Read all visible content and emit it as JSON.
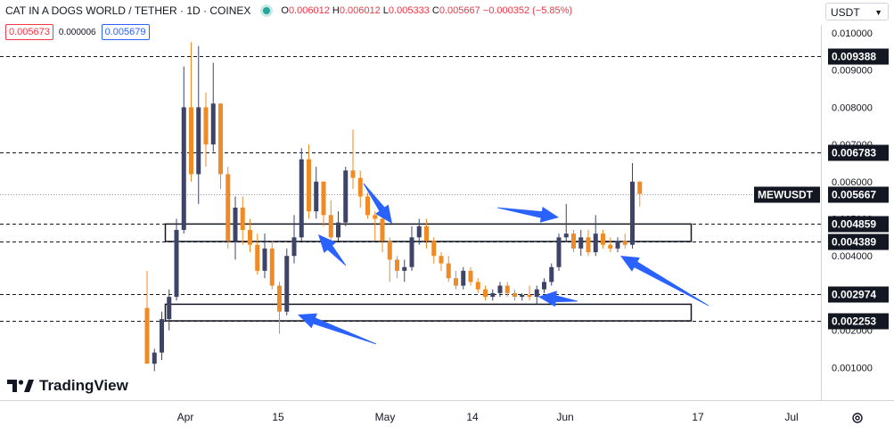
{
  "header": {
    "symbol": "CAT IN A DOGS WORLD / TETHER · 1D · COINEX",
    "o_label": "O",
    "o": "0.006012",
    "h_label": "H",
    "h": "0.006012",
    "l_label": "L",
    "l": "0.005333",
    "c_label": "C",
    "c": "0.005667",
    "change": "−0.000352 (−5.85%)"
  },
  "trade": {
    "sell": "0.005673",
    "spread": "0.000006",
    "buy": "0.005679"
  },
  "currency": "USDT",
  "branding": "TradingView",
  "icons": {
    "gear": "gear-icon",
    "dropdown": "chevron-down-icon"
  },
  "colors": {
    "up": "#3d4468",
    "down": "#f08a24",
    "arrow": "#2962ff",
    "last_price_bg": "#131722"
  },
  "chart_data": {
    "type": "candlestick",
    "symbol": "MEWUSDT",
    "last_price": 0.005667,
    "y_range": [
      0.0004,
      0.0104
    ],
    "y_ticks": [
      "0.001000",
      "0.002000",
      "0.003000",
      "0.004000",
      "0.005000",
      "0.006000",
      "0.007000",
      "0.008000",
      "0.009000",
      "0.010000"
    ],
    "x_tick_labels": [
      "Apr",
      "15",
      "May",
      "14",
      "Jun",
      "17",
      "Jul"
    ],
    "horizontal_levels": [
      {
        "label": "0.009388",
        "value": 0.009388
      },
      {
        "label": "0.006783",
        "value": 0.006783
      },
      {
        "label": "0.004859",
        "value": 0.004859
      },
      {
        "label": "0.004389",
        "value": 0.004389
      },
      {
        "label": "0.002974",
        "value": 0.002974
      },
      {
        "label": "0.002253",
        "value": 0.002253
      }
    ],
    "zones": [
      {
        "low": 0.004389,
        "high": 0.004859
      },
      {
        "low": 0.002253,
        "high": 0.0027
      }
    ],
    "candles": [
      [
        0.0026,
        0.0036,
        0.0011,
        0.0011
      ],
      [
        0.0011,
        0.0015,
        0.0009,
        0.0014
      ],
      [
        0.0014,
        0.0025,
        0.0012,
        0.0023
      ],
      [
        0.0023,
        0.0031,
        0.002,
        0.0029
      ],
      [
        0.0029,
        0.005,
        0.0028,
        0.0047
      ],
      [
        0.0047,
        0.0091,
        0.0046,
        0.008
      ],
      [
        0.008,
        0.00975,
        0.006,
        0.0062
      ],
      [
        0.0062,
        0.00965,
        0.0054,
        0.008
      ],
      [
        0.008,
        0.0084,
        0.0064,
        0.007
      ],
      [
        0.007,
        0.0092,
        0.0068,
        0.0081
      ],
      [
        0.0081,
        0.0081,
        0.0058,
        0.0062
      ],
      [
        0.0062,
        0.0064,
        0.0042,
        0.0044
      ],
      [
        0.0044,
        0.0056,
        0.0039,
        0.0053
      ],
      [
        0.0053,
        0.0056,
        0.0043,
        0.0047
      ],
      [
        0.0047,
        0.005,
        0.0041,
        0.0043
      ],
      [
        0.0043,
        0.0046,
        0.0035,
        0.0036
      ],
      [
        0.0036,
        0.0046,
        0.0034,
        0.0042
      ],
      [
        0.0042,
        0.0044,
        0.0031,
        0.0032
      ],
      [
        0.0032,
        0.0033,
        0.0019,
        0.0025
      ],
      [
        0.0025,
        0.0042,
        0.0024,
        0.004
      ],
      [
        0.004,
        0.0051,
        0.0038,
        0.0045
      ],
      [
        0.0045,
        0.0069,
        0.0044,
        0.0066
      ],
      [
        0.0066,
        0.007,
        0.005,
        0.0052
      ],
      [
        0.0052,
        0.0064,
        0.005,
        0.006
      ],
      [
        0.006,
        0.006,
        0.0048,
        0.0051
      ],
      [
        0.0051,
        0.0055,
        0.0043,
        0.0045
      ],
      [
        0.0045,
        0.0052,
        0.0044,
        0.0049
      ],
      [
        0.0049,
        0.0064,
        0.0048,
        0.0063
      ],
      [
        0.0063,
        0.0074,
        0.0058,
        0.0061
      ],
      [
        0.0061,
        0.0063,
        0.0053,
        0.0056
      ],
      [
        0.0056,
        0.0057,
        0.005,
        0.0051
      ],
      [
        0.0051,
        0.0052,
        0.0044,
        0.005
      ],
      [
        0.005,
        0.0052,
        0.0041,
        0.0044
      ],
      [
        0.0044,
        0.0045,
        0.0033,
        0.0039
      ],
      [
        0.0039,
        0.004,
        0.0034,
        0.0036
      ],
      [
        0.0036,
        0.0039,
        0.0033,
        0.0037
      ],
      [
        0.0037,
        0.0048,
        0.0036,
        0.0045
      ],
      [
        0.0045,
        0.005,
        0.0043,
        0.0048
      ],
      [
        0.0048,
        0.005,
        0.0042,
        0.0044
      ],
      [
        0.0044,
        0.0045,
        0.0038,
        0.004
      ],
      [
        0.004,
        0.0041,
        0.0036,
        0.0038
      ],
      [
        0.0038,
        0.004,
        0.0033,
        0.0034
      ],
      [
        0.0034,
        0.0036,
        0.0031,
        0.0032
      ],
      [
        0.0032,
        0.0037,
        0.0031,
        0.0036
      ],
      [
        0.0036,
        0.0037,
        0.0032,
        0.0033
      ],
      [
        0.0033,
        0.0034,
        0.003,
        0.0031
      ],
      [
        0.0031,
        0.0032,
        0.0028,
        0.0029
      ],
      [
        0.0029,
        0.0031,
        0.0028,
        0.003
      ],
      [
        0.003,
        0.0033,
        0.0029,
        0.0032
      ],
      [
        0.0032,
        0.0033,
        0.0029,
        0.003
      ],
      [
        0.003,
        0.0031,
        0.0028,
        0.0029
      ],
      [
        0.0029,
        0.003,
        0.0028,
        0.00295
      ],
      [
        0.00295,
        0.0032,
        0.0028,
        0.0029
      ],
      [
        0.0029,
        0.0032,
        0.0027,
        0.0031
      ],
      [
        0.0031,
        0.0034,
        0.003,
        0.0033
      ],
      [
        0.0033,
        0.0038,
        0.0032,
        0.0037
      ],
      [
        0.0037,
        0.0046,
        0.0036,
        0.0045
      ],
      [
        0.0045,
        0.0054,
        0.0044,
        0.0046
      ],
      [
        0.0046,
        0.0047,
        0.0041,
        0.0042
      ],
      [
        0.0042,
        0.0047,
        0.004,
        0.0045
      ],
      [
        0.0045,
        0.0047,
        0.004,
        0.0041
      ],
      [
        0.0041,
        0.0051,
        0.004,
        0.0046
      ],
      [
        0.0046,
        0.0047,
        0.0042,
        0.0043
      ],
      [
        0.0043,
        0.0045,
        0.0041,
        0.0042
      ],
      [
        0.0042,
        0.0045,
        0.0041,
        0.0044
      ],
      [
        0.0044,
        0.0046,
        0.0042,
        0.0043
      ],
      [
        0.0043,
        0.0065,
        0.0042,
        0.006
      ],
      [
        0.006,
        0.00601,
        0.00533,
        0.00567
      ]
    ]
  }
}
